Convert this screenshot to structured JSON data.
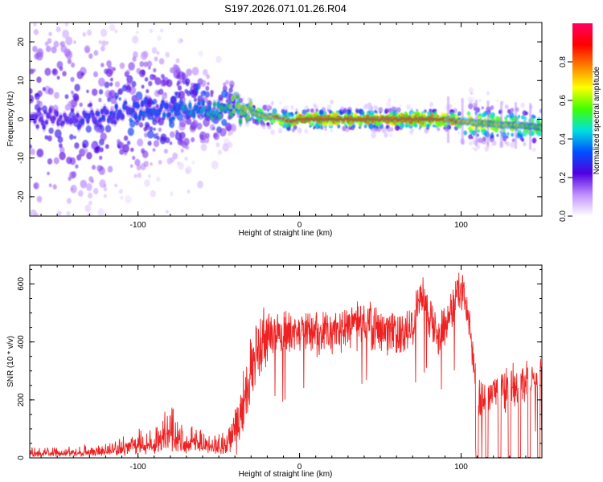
{
  "figure_title": "S197.2026.071.01.26.R04",
  "chart_data": [
    {
      "type": "heatmap",
      "title": "",
      "xlabel": "Height of straight line (km)",
      "ylabel": "Frequency (Hz)",
      "xlim": [
        -167,
        150
      ],
      "ylim": [
        -25,
        25
      ],
      "x_ticks": [
        -100,
        0,
        100
      ],
      "y_ticks": [
        -20,
        -10,
        0,
        10,
        20
      ],
      "colorbar": {
        "label": "Normalized spectral amplitude",
        "range": [
          0,
          1
        ],
        "ticks": [
          "0.0",
          "0.2",
          "0.4",
          "0.6",
          "0.8"
        ],
        "colors": [
          "#ffffff",
          "#c090ff",
          "#5000e0",
          "#0050ff",
          "#00e0e0",
          "#40ff00",
          "#ffff00",
          "#ff8000",
          "#ff0000",
          "#ff0060"
        ]
      },
      "ridge": {
        "x": [
          -167,
          -120,
          -100,
          -80,
          -60,
          -50,
          -40,
          -35,
          -25,
          -15,
          -5,
          0,
          20,
          40,
          60,
          80,
          90,
          100,
          110,
          130,
          150
        ],
        "y": [
          0,
          1,
          2,
          2.5,
          3,
          2,
          4,
          2.5,
          1,
          0.5,
          -0.5,
          0,
          0,
          0,
          0,
          0,
          0,
          -0.5,
          -1,
          -1.5,
          -2
        ],
        "amplitude": [
          0.25,
          0.3,
          0.35,
          0.4,
          0.45,
          0.5,
          0.6,
          0.65,
          0.75,
          0.8,
          0.85,
          0.9,
          0.95,
          0.95,
          0.95,
          0.95,
          0.9,
          0.85,
          0.7,
          0.65,
          0.6
        ]
      }
    },
    {
      "type": "line",
      "title": "",
      "xlabel": "Height of straight line (km)",
      "ylabel": "SNR (10 * v/v)",
      "xlim": [
        -167,
        150
      ],
      "ylim": [
        0,
        665
      ],
      "x_ticks": [
        -100,
        0,
        100
      ],
      "y_ticks": [
        0,
        200,
        400,
        600
      ],
      "color": "#ee2222",
      "envelope": {
        "x": [
          -167,
          -140,
          -120,
          -100,
          -80,
          -70,
          -60,
          -50,
          -45,
          -40,
          -35,
          -30,
          -25,
          -20,
          -10,
          0,
          10,
          20,
          30,
          40,
          50,
          60,
          70,
          75,
          80,
          85,
          90,
          95,
          100,
          105,
          108,
          110,
          120,
          130,
          140,
          150
        ],
        "y": [
          15,
          20,
          25,
          40,
          80,
          60,
          50,
          45,
          40,
          100,
          200,
          300,
          380,
          420,
          430,
          440,
          420,
          440,
          450,
          460,
          440,
          430,
          460,
          560,
          500,
          430,
          460,
          520,
          600,
          480,
          300,
          200,
          220,
          240,
          260,
          320
        ]
      },
      "dropouts_x": [
        110,
        116,
        124,
        130,
        136,
        142,
        148
      ]
    }
  ]
}
